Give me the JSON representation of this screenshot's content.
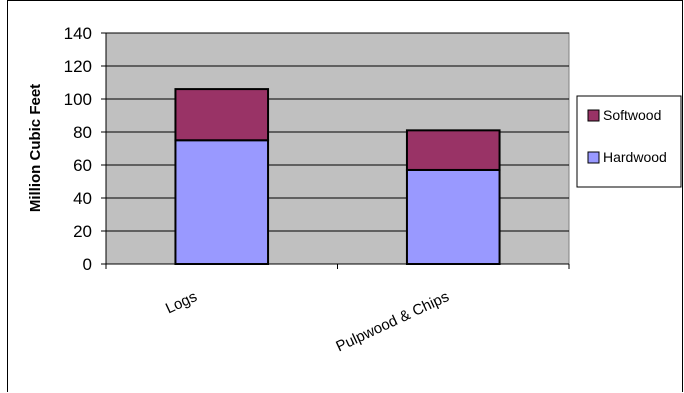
{
  "chart_data": {
    "type": "bar",
    "stacked": true,
    "categories": [
      "Logs",
      "Pulpwood & Chips"
    ],
    "series": [
      {
        "name": "Hardwood",
        "values": [
          75,
          57
        ],
        "color": "#9999ff"
      },
      {
        "name": "Softwood",
        "values": [
          31,
          24
        ],
        "color": "#993366"
      }
    ],
    "ylabel": "Million Cubic Feet",
    "xlabel": "",
    "ylim": [
      0,
      140
    ],
    "yticks": [
      0,
      20,
      40,
      60,
      80,
      100,
      120,
      140
    ],
    "grid": true,
    "plot_background": "#c0c0c0",
    "legend_position": "right"
  }
}
